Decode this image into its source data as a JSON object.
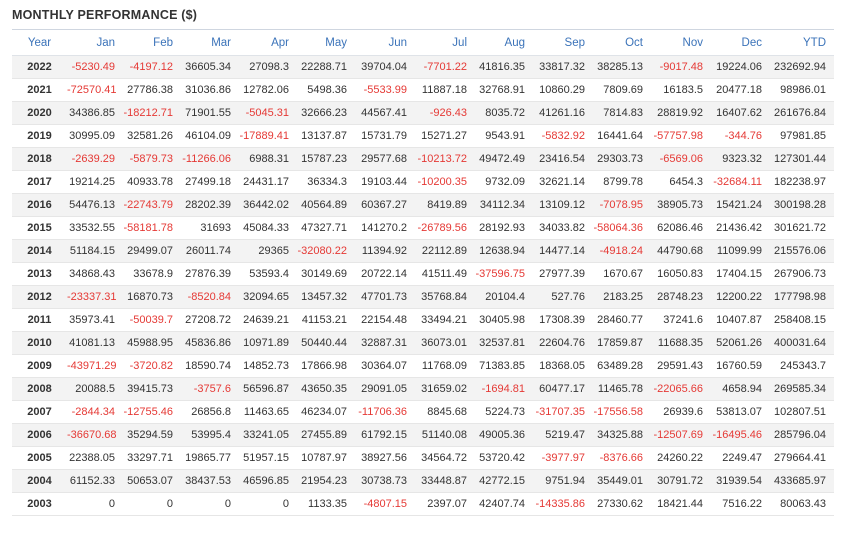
{
  "title": "MONTHLY PERFORMANCE ($)",
  "colors": {
    "header": "#3b73b9",
    "negative": "#e53935",
    "stripe": "#f3f3f3"
  },
  "columns": [
    "Year",
    "Jan",
    "Feb",
    "Mar",
    "Apr",
    "May",
    "Jun",
    "Jul",
    "Aug",
    "Sep",
    "Oct",
    "Nov",
    "Dec",
    "YTD"
  ],
  "rows": [
    [
      "2022",
      "-5230.49",
      "-4197.12",
      "36605.34",
      "27098.3",
      "22288.71",
      "39704.04",
      "-7701.22",
      "41816.35",
      "33817.32",
      "38285.13",
      "-9017.48",
      "19224.06",
      "232692.94"
    ],
    [
      "2021",
      "-72570.41",
      "27786.38",
      "31036.86",
      "12782.06",
      "5498.36",
      "-5533.99",
      "11887.18",
      "32768.91",
      "10860.29",
      "7809.69",
      "16183.5",
      "20477.18",
      "98986.01"
    ],
    [
      "2020",
      "34386.85",
      "-18212.71",
      "71901.55",
      "-5045.31",
      "32666.23",
      "44567.41",
      "-926.43",
      "8035.72",
      "41261.16",
      "7814.83",
      "28819.92",
      "16407.62",
      "261676.84"
    ],
    [
      "2019",
      "30995.09",
      "32581.26",
      "46104.09",
      "-17889.41",
      "13137.87",
      "15731.79",
      "15271.27",
      "9543.91",
      "-5832.92",
      "16441.64",
      "-57757.98",
      "-344.76",
      "97981.85"
    ],
    [
      "2018",
      "-2639.29",
      "-5879.73",
      "-11266.06",
      "6988.31",
      "15787.23",
      "29577.68",
      "-10213.72",
      "49472.49",
      "23416.54",
      "29303.73",
      "-6569.06",
      "9323.32",
      "127301.44"
    ],
    [
      "2017",
      "19214.25",
      "40933.78",
      "27499.18",
      "24431.17",
      "36334.3",
      "19103.44",
      "-10200.35",
      "9732.09",
      "32621.14",
      "8799.78",
      "6454.3",
      "-32684.11",
      "182238.97"
    ],
    [
      "2016",
      "54476.13",
      "-22743.79",
      "28202.39",
      "36442.02",
      "40564.89",
      "60367.27",
      "8419.89",
      "34112.34",
      "13109.12",
      "-7078.95",
      "38905.73",
      "15421.24",
      "300198.28"
    ],
    [
      "2015",
      "33532.55",
      "-58181.78",
      "31693",
      "45084.33",
      "47327.71",
      "141270.2",
      "-26789.56",
      "28192.93",
      "34033.82",
      "-58064.36",
      "62086.46",
      "21436.42",
      "301621.72"
    ],
    [
      "2014",
      "51184.15",
      "29499.07",
      "26011.74",
      "29365",
      "-32080.22",
      "11394.92",
      "22112.89",
      "12638.94",
      "14477.14",
      "-4918.24",
      "44790.68",
      "11099.99",
      "215576.06"
    ],
    [
      "2013",
      "34868.43",
      "33678.9",
      "27876.39",
      "53593.4",
      "30149.69",
      "20722.14",
      "41511.49",
      "-37596.75",
      "27977.39",
      "1670.67",
      "16050.83",
      "17404.15",
      "267906.73"
    ],
    [
      "2012",
      "-23337.31",
      "16870.73",
      "-8520.84",
      "32094.65",
      "13457.32",
      "47701.73",
      "35768.84",
      "20104.4",
      "527.76",
      "2183.25",
      "28748.23",
      "12200.22",
      "177798.98"
    ],
    [
      "2011",
      "35973.41",
      "-50039.7",
      "27208.72",
      "24639.21",
      "41153.21",
      "22154.48",
      "33494.21",
      "30405.98",
      "17308.39",
      "28460.77",
      "37241.6",
      "10407.87",
      "258408.15"
    ],
    [
      "2010",
      "41081.13",
      "45988.95",
      "45836.86",
      "10971.89",
      "50440.44",
      "32887.31",
      "36073.01",
      "32537.81",
      "22604.76",
      "17859.87",
      "11688.35",
      "52061.26",
      "400031.64"
    ],
    [
      "2009",
      "-43971.29",
      "-3720.82",
      "18590.74",
      "14852.73",
      "17866.98",
      "30364.07",
      "11768.09",
      "71383.85",
      "18368.05",
      "63489.28",
      "29591.43",
      "16760.59",
      "245343.7"
    ],
    [
      "2008",
      "20088.5",
      "39415.73",
      "-3757.6",
      "56596.87",
      "43650.35",
      "29091.05",
      "31659.02",
      "-1694.81",
      "60477.17",
      "11465.78",
      "-22065.66",
      "4658.94",
      "269585.34"
    ],
    [
      "2007",
      "-2844.34",
      "-12755.46",
      "26856.8",
      "11463.65",
      "46234.07",
      "-11706.36",
      "8845.68",
      "5224.73",
      "-31707.35",
      "-17556.58",
      "26939.6",
      "53813.07",
      "102807.51"
    ],
    [
      "2006",
      "-36670.68",
      "35294.59",
      "53995.4",
      "33241.05",
      "27455.89",
      "61792.15",
      "51140.08",
      "49005.36",
      "5219.47",
      "34325.88",
      "-12507.69",
      "-16495.46",
      "285796.04"
    ],
    [
      "2005",
      "22388.05",
      "33297.71",
      "19865.77",
      "51957.15",
      "10787.97",
      "38927.56",
      "34564.72",
      "53720.42",
      "-3977.97",
      "-8376.66",
      "24260.22",
      "2249.47",
      "279664.41"
    ],
    [
      "2004",
      "61152.33",
      "50653.07",
      "38437.53",
      "46596.85",
      "21954.23",
      "30738.73",
      "33448.87",
      "42772.15",
      "9751.94",
      "35449.01",
      "30791.72",
      "31939.54",
      "433685.97"
    ],
    [
      "2003",
      "0",
      "0",
      "0",
      "0",
      "1133.35",
      "-4807.15",
      "2397.07",
      "42407.74",
      "-14335.86",
      "27330.62",
      "18421.44",
      "7516.22",
      "80063.43"
    ]
  ]
}
